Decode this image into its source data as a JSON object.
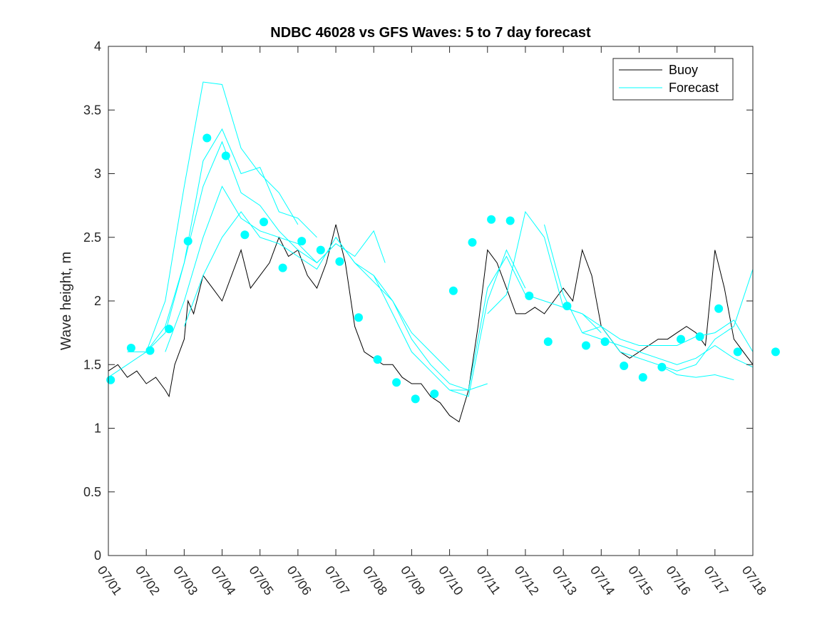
{
  "chart_data": {
    "type": "line",
    "title": "NDBC 46028 vs GFS Waves: 5 to 7 day forecast",
    "xlabel": "",
    "ylabel": "Wave height, m",
    "ylim": [
      0,
      4
    ],
    "xlim": [
      0,
      17
    ],
    "x_ticks": [
      0,
      1,
      2,
      3,
      4,
      5,
      6,
      7,
      8,
      9,
      10,
      11,
      12,
      13,
      14,
      15,
      16,
      17
    ],
    "x_tick_labels": [
      "07/01",
      "07/02",
      "07/03",
      "07/04",
      "07/05",
      "07/06",
      "07/07",
      "07/08",
      "07/09",
      "07/10",
      "07/11",
      "07/12",
      "07/13",
      "07/14",
      "07/15",
      "07/16",
      "07/17",
      "07/18"
    ],
    "y_ticks": [
      0,
      0.5,
      1,
      1.5,
      2,
      2.5,
      3,
      3.5,
      4
    ],
    "y_tick_labels": [
      "0",
      "0.5",
      "1",
      "1.5",
      "2",
      "2.5",
      "3",
      "3.5",
      "4"
    ],
    "x_units": "days after 07/01",
    "grid": false,
    "legend_position": "top-right",
    "colors": {
      "buoy": "#000000",
      "forecast": "#00ffff"
    },
    "series": [
      {
        "name": "Buoy",
        "kind": "line",
        "x": [
          0.0,
          0.25,
          0.5,
          0.75,
          1.0,
          1.25,
          1.5,
          1.6,
          1.75,
          2.0,
          2.1,
          2.25,
          2.5,
          2.75,
          3.0,
          3.25,
          3.5,
          3.75,
          4.0,
          4.25,
          4.5,
          4.75,
          5.0,
          5.25,
          5.5,
          5.75,
          6.0,
          6.25,
          6.4,
          6.5,
          6.75,
          7.0,
          7.25,
          7.5,
          7.75,
          8.0,
          8.25,
          8.5,
          8.75,
          9.0,
          9.25,
          9.5,
          9.75,
          10.0,
          10.25,
          10.5,
          10.75,
          11.0,
          11.25,
          11.5,
          11.75,
          12.0,
          12.25,
          12.5,
          12.75,
          13.0,
          13.25,
          13.5,
          13.75,
          14.0,
          14.25,
          14.5,
          14.75,
          15.0,
          15.25,
          15.5,
          15.75,
          16.0,
          16.25,
          16.5,
          16.75,
          17.0
        ],
        "y": [
          1.45,
          1.5,
          1.4,
          1.45,
          1.35,
          1.4,
          1.3,
          1.25,
          1.5,
          1.7,
          2.0,
          1.9,
          2.2,
          2.1,
          2.0,
          2.2,
          2.4,
          2.1,
          2.2,
          2.3,
          2.5,
          2.35,
          2.4,
          2.2,
          2.1,
          2.3,
          2.6,
          2.3,
          2.0,
          1.8,
          1.6,
          1.55,
          1.5,
          1.5,
          1.4,
          1.35,
          1.35,
          1.25,
          1.2,
          1.1,
          1.05,
          1.3,
          1.8,
          2.4,
          2.3,
          2.1,
          1.9,
          1.9,
          1.95,
          1.9,
          2.0,
          2.1,
          2.0,
          2.4,
          2.2,
          1.8,
          1.7,
          1.6,
          1.55,
          1.6,
          1.65,
          1.7,
          1.7,
          1.75,
          1.8,
          1.75,
          1.65,
          2.4,
          2.1,
          1.7,
          1.6,
          1.5
        ]
      },
      {
        "name": "Forecast",
        "kind": "lines",
        "segments": [
          {
            "x": [
              0.0,
              0.5,
              1.0,
              1.5,
              2.0,
              2.5,
              3.0,
              3.5,
              4.0,
              4.5,
              5.0
            ],
            "y": [
              1.4,
              1.5,
              1.6,
              2.0,
              2.9,
              3.72,
              3.7,
              3.2,
              3.0,
              2.85,
              2.6
            ]
          },
          {
            "x": [
              0.5,
              1.0,
              1.5,
              2.0,
              2.5,
              3.0,
              3.5,
              4.0,
              4.5,
              5.0,
              5.5
            ],
            "y": [
              1.6,
              1.6,
              1.8,
              2.3,
              3.1,
              3.35,
              3.0,
              3.05,
              2.7,
              2.65,
              2.5
            ]
          },
          {
            "x": [
              1.0,
              1.5,
              2.0,
              2.5,
              3.0,
              3.5,
              4.0,
              4.5,
              5.0,
              5.5,
              6.0
            ],
            "y": [
              1.6,
              1.75,
              2.3,
              2.9,
              3.25,
              2.85,
              2.75,
              2.55,
              2.4,
              2.3,
              2.45
            ]
          },
          {
            "x": [
              1.5,
              2.0,
              2.5,
              3.0,
              3.5,
              4.0,
              4.5,
              5.0,
              5.5,
              6.0,
              6.5,
              7.0,
              7.3
            ],
            "y": [
              1.6,
              2.0,
              2.5,
              2.9,
              2.65,
              2.55,
              2.5,
              2.45,
              2.3,
              2.45,
              2.35,
              2.55,
              2.3
            ]
          },
          {
            "x": [
              2.0,
              2.5,
              3.0,
              3.5,
              4.0,
              4.5,
              5.0,
              5.5,
              6.0,
              6.5,
              7.0,
              7.5,
              8.0,
              8.5,
              9.0
            ],
            "y": [
              1.8,
              2.2,
              2.5,
              2.7,
              2.5,
              2.45,
              2.35,
              2.25,
              2.5,
              2.3,
              2.15,
              2.0,
              1.75,
              1.6,
              1.45
            ]
          },
          {
            "x": [
              6.0,
              6.5,
              7.0,
              7.5,
              8.0,
              8.5,
              9.0,
              9.5,
              10.0
            ],
            "y": [
              2.5,
              2.3,
              2.2,
              2.0,
              1.7,
              1.5,
              1.35,
              1.3,
              1.35
            ]
          },
          {
            "x": [
              7.0,
              7.5,
              8.0,
              8.5,
              9.0,
              9.5,
              10.0,
              10.5,
              11.0
            ],
            "y": [
              2.2,
              1.9,
              1.6,
              1.45,
              1.3,
              1.25,
              2.0,
              2.4,
              2.1
            ]
          },
          {
            "x": [
              9.0,
              9.5,
              10.0,
              10.5,
              11.0,
              11.5,
              12.0,
              12.5,
              13.0
            ],
            "y": [
              1.3,
              1.3,
              2.1,
              2.35,
              2.05,
              2.0,
              1.95,
              1.9,
              1.75
            ]
          },
          {
            "x": [
              10.0,
              10.5,
              11.0,
              11.5,
              12.0,
              12.5,
              13.0,
              13.5,
              14.0,
              14.5,
              15.0,
              15.5,
              16.0,
              16.5
            ],
            "y": [
              1.9,
              2.05,
              2.7,
              2.5,
              1.95,
              1.9,
              1.8,
              1.6,
              1.55,
              1.5,
              1.42,
              1.4,
              1.42,
              1.38
            ]
          },
          {
            "x": [
              11.5,
              12.0,
              12.5,
              13.0,
              13.5,
              14.0,
              14.5,
              15.0,
              15.5,
              16.0,
              16.5,
              17.0
            ],
            "y": [
              2.6,
              2.05,
              1.75,
              1.7,
              1.65,
              1.6,
              1.55,
              1.5,
              1.55,
              1.65,
              1.55,
              1.48
            ]
          },
          {
            "x": [
              12.5,
              13.0,
              13.5,
              14.0,
              14.5,
              15.0,
              15.5,
              16.0,
              16.5,
              17.0
            ],
            "y": [
              1.75,
              1.8,
              1.7,
              1.65,
              1.65,
              1.65,
              1.72,
              1.75,
              1.85,
              1.6
            ]
          },
          {
            "x": [
              14.5,
              15.0,
              15.5,
              16.0,
              16.5,
              17.0
            ],
            "y": [
              1.5,
              1.45,
              1.5,
              1.7,
              1.8,
              2.25
            ]
          }
        ]
      },
      {
        "name": "",
        "kind": "markers",
        "x": [
          0.06,
          0.6,
          1.1,
          1.6,
          2.1,
          2.6,
          3.1,
          3.6,
          4.1,
          4.6,
          5.1,
          5.6,
          6.1,
          6.6,
          7.1,
          7.6,
          8.1,
          8.6,
          9.1,
          9.6,
          10.1,
          10.6,
          11.1,
          11.6,
          12.1,
          12.6,
          13.1,
          13.6,
          14.1,
          14.6,
          15.1,
          15.6,
          16.1,
          16.6,
          17.6
        ],
        "y": [
          1.38,
          1.63,
          1.61,
          1.78,
          2.47,
          3.28,
          3.14,
          2.52,
          2.62,
          2.26,
          2.47,
          2.4,
          2.31,
          1.87,
          1.54,
          1.36,
          1.23,
          1.27,
          2.08,
          2.46,
          2.64,
          2.63,
          2.04,
          1.68,
          1.96,
          1.65,
          1.68,
          1.49,
          1.4,
          1.48,
          1.7,
          1.72,
          1.94,
          1.6,
          1.6
        ]
      }
    ]
  }
}
